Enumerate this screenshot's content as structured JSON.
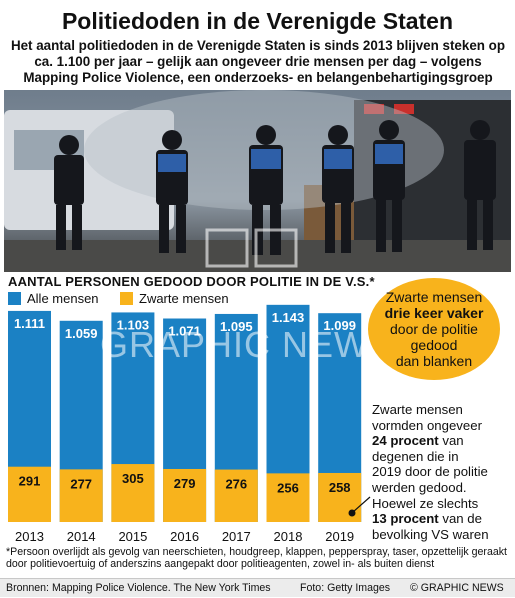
{
  "title": "Politiedoden in de Verenigde Staten",
  "subtitle": "Het aantal politiedoden in de Verenigde Staten is sinds 2013 blijven steken op ca. 1.100 per jaar – gelijk aan ongeveer drie mensen per dag – volgens Mapping Police Violence, een onderzoeks- en belangenbehartigingsgroep",
  "colors": {
    "blue": "#1b81c4",
    "yellow": "#f8b31c"
  },
  "chart_data": {
    "type": "bar",
    "title": "AANTAL PERSONEN GEDOOD DOOR POLITIE IN DE V.S.*",
    "categories": [
      "2013",
      "2014",
      "2015",
      "2016",
      "2017",
      "2018",
      "2019"
    ],
    "series": [
      {
        "name": "Alle mensen",
        "values": [
          1111,
          1059,
          1103,
          1071,
          1095,
          1143,
          1099
        ],
        "labels": [
          "1.111",
          "1.059",
          "1.103",
          "1.071",
          "1.095",
          "1.143",
          "1.099"
        ]
      },
      {
        "name": "Zwarte mensen",
        "values": [
          291,
          277,
          305,
          279,
          276,
          256,
          258
        ],
        "labels": [
          "291",
          "277",
          "305",
          "279",
          "276",
          "256",
          "258"
        ]
      }
    ],
    "stacked": false,
    "overlap": true
  },
  "callout1": {
    "pre": "Zwarte mensen",
    "bold": "drie keer vaker",
    "post1": "door de politie",
    "post2": "gedood",
    "post3": "dan blanken"
  },
  "callout2": {
    "l1": "Zwarte mensen",
    "l2": "vormden ongeveer",
    "l3_bold": "24 procent",
    "l3_rest": " van",
    "l4": "degenen die in",
    "l5": "2019 door de politie",
    "l6": "werden gedood.",
    "l7": "Hoewel ze slechts",
    "l8_bold": "13 procent",
    "l8_rest": " van de",
    "l9": "bevolking VS waren"
  },
  "footnote": "*Persoon overlijdt als gevolg van neerschieten, houdgreep, klappen, pepperspray, taser, opzettelijk geraakt door politievoertuig of anderszins aangepakt door politieagenten, zowel in- als buiten dienst",
  "sources": {
    "left": "Bronnen: Mapping Police Violence. The New York Times",
    "middle": "Foto: Getty Images",
    "right": "© GRAPHIC NEWS"
  },
  "watermark": "GRAPHIC NEWS"
}
